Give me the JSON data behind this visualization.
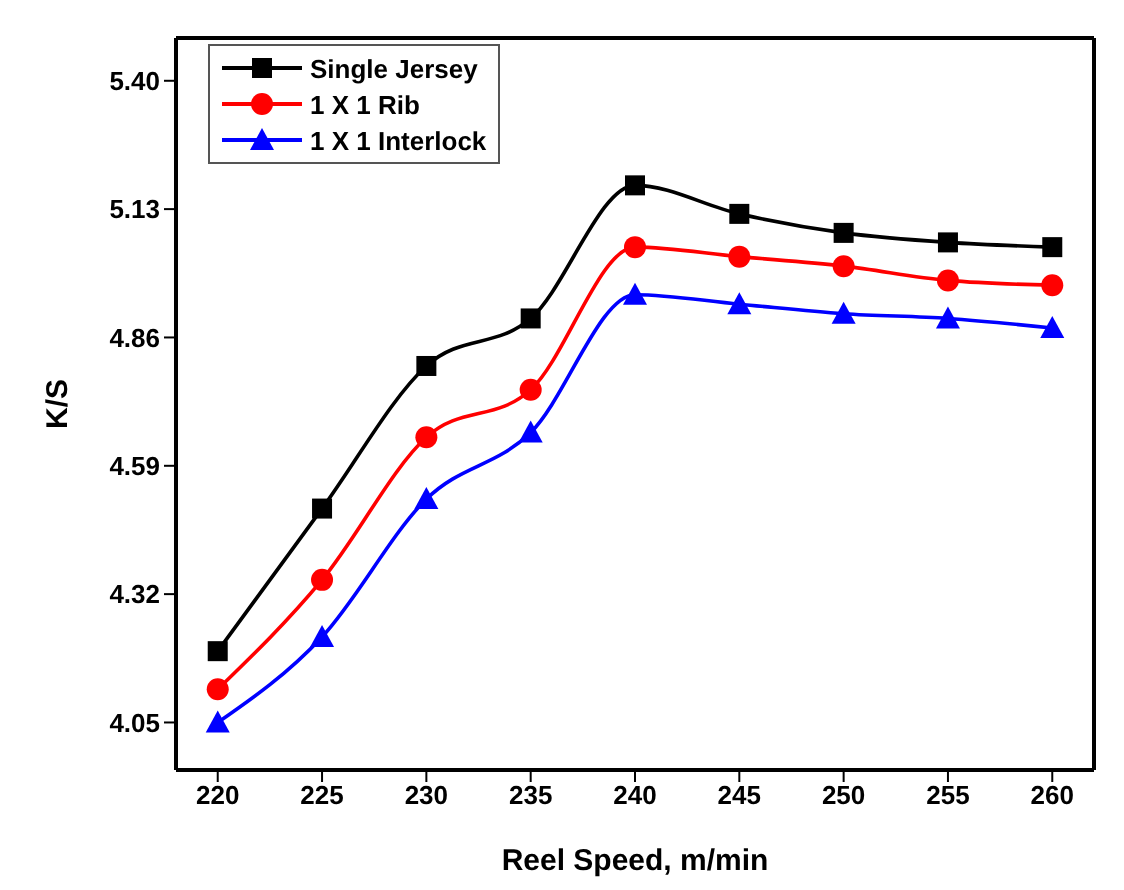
{
  "chart_data": {
    "type": "line",
    "xlabel": "Reel Speed, m/min",
    "ylabel": "K/S",
    "x": [
      220,
      225,
      230,
      235,
      240,
      245,
      250,
      255,
      260
    ],
    "series": [
      {
        "name": "Single Jersey",
        "color": "#000000",
        "marker": "square",
        "values": [
          4.2,
          4.5,
          4.8,
          4.9,
          5.18,
          5.12,
          5.08,
          5.06,
          5.05
        ]
      },
      {
        "name": "1 X 1 Rib",
        "color": "#ff0000",
        "marker": "circle",
        "values": [
          4.12,
          4.35,
          4.65,
          4.75,
          5.05,
          5.03,
          5.01,
          4.98,
          4.97
        ]
      },
      {
        "name": "1 X 1 Interlock",
        "color": "#0000ff",
        "marker": "triangle",
        "values": [
          4.05,
          4.23,
          4.52,
          4.66,
          4.95,
          4.93,
          4.91,
          4.9,
          4.88
        ]
      }
    ],
    "xlim": [
      218,
      262
    ],
    "xticks": [
      220,
      225,
      230,
      235,
      240,
      245,
      250,
      255,
      260
    ],
    "ylim": [
      3.95,
      5.49
    ],
    "yticks": [
      4.05,
      4.32,
      4.59,
      4.86,
      5.13,
      {
        "value": 5.4,
        "label": "5.40"
      }
    ],
    "grid": false,
    "legend": "top left",
    "line_style": "solid"
  }
}
